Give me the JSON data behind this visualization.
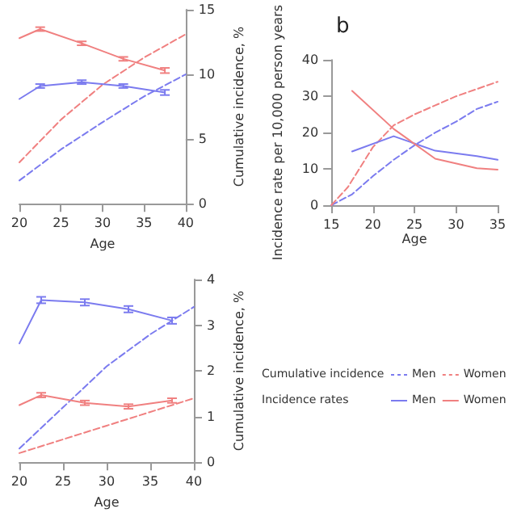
{
  "chart_data": [
    {
      "type": "line",
      "xlabel": "Age",
      "y2label": "Cumulative incidence, %",
      "xlim": [
        20,
        40
      ],
      "xticks": [
        20,
        25,
        30,
        35,
        40
      ],
      "y2lim": [
        0,
        15
      ],
      "y2ticks": [
        0,
        5,
        10,
        15
      ],
      "marker": "none",
      "series": [
        {
          "color": "#7b7bef",
          "line_style": "dashed",
          "axis": "y2",
          "x": [
            20,
            25,
            30,
            35,
            40
          ],
          "values": [
            1.8,
            4.2,
            6.3,
            8.3,
            10
          ]
        },
        {
          "color": "#f08080",
          "line_style": "dashed",
          "axis": "y2",
          "x": [
            20,
            25,
            30,
            35,
            40
          ],
          "values": [
            3.2,
            6.5,
            9.2,
            11.3,
            13.1
          ]
        },
        {
          "color": "#7b7bef",
          "line_style": "solid",
          "axis": "y2",
          "x": [
            20,
            22.5,
            27.5,
            32.5,
            37.5
          ],
          "values": [
            8.1,
            9.1,
            9.4,
            9.1,
            8.6
          ],
          "errors": [
            null,
            0.15,
            0.15,
            0.15,
            0.2
          ]
        },
        {
          "color": "#f08080",
          "line_style": "solid",
          "axis": "y2",
          "x": [
            20,
            22.5,
            27.5,
            32.5,
            37.5
          ],
          "values": [
            12.8,
            13.5,
            12.4,
            11.2,
            10.3
          ],
          "errors": [
            null,
            0.15,
            0.15,
            0.15,
            0.2
          ]
        }
      ]
    },
    {
      "type": "line",
      "xlabel": "Age",
      "ylabel": "Incidence rate per 10,000 person years",
      "xlim": [
        15,
        35
      ],
      "xticks": [
        15,
        20,
        25,
        30,
        35
      ],
      "ylim": [
        0,
        40
      ],
      "yticks": [
        0,
        10,
        20,
        30,
        40
      ],
      "marker": "none",
      "legend": "bottom",
      "annotations": [
        "b",
        "Cumulative incidence",
        "Incidence rates"
      ],
      "series": [
        {
          "name": "Men",
          "color": "#7b7bef",
          "line_style": "dashed",
          "x": [
            15,
            17.5,
            20,
            22.5,
            25,
            27.5,
            30,
            32.5,
            35
          ],
          "values": [
            0,
            3,
            8,
            12.5,
            16.5,
            20,
            23,
            26.5,
            28.5
          ]
        },
        {
          "name": "Women",
          "color": "#f08080",
          "line_style": "dashed",
          "x": [
            15,
            17,
            20,
            22.5,
            25,
            27.5,
            30,
            35
          ],
          "values": [
            0,
            5,
            16,
            22,
            25,
            27.5,
            30,
            34
          ]
        },
        {
          "name": "Men",
          "color": "#7b7bef",
          "line_style": "solid",
          "x": [
            17.5,
            22.5,
            27.5,
            32.5,
            35
          ],
          "values": [
            14.8,
            19,
            15,
            13.5,
            12.5
          ]
        },
        {
          "name": "Women",
          "color": "#f08080",
          "line_style": "solid",
          "x": [
            17.5,
            22.5,
            27.5,
            32.5,
            35
          ],
          "values": [
            31.5,
            21,
            12.8,
            10.2,
            9.8
          ]
        }
      ]
    },
    {
      "type": "line",
      "xlabel": "Age",
      "y2label": "Cumulative incidence, %",
      "xlim": [
        20,
        40
      ],
      "xticks": [
        20,
        25,
        30,
        35,
        40
      ],
      "y2lim": [
        0,
        4
      ],
      "y2ticks": [
        0,
        1,
        2,
        3,
        4
      ],
      "marker": "none",
      "series": [
        {
          "color": "#7b7bef",
          "line_style": "dashed",
          "axis": "y2",
          "x": [
            20,
            25,
            30,
            35,
            40
          ],
          "values": [
            0.3,
            1.2,
            2.1,
            2.8,
            3.4
          ]
        },
        {
          "color": "#f08080",
          "line_style": "dashed",
          "axis": "y2",
          "x": [
            20,
            25,
            30,
            35,
            40
          ],
          "values": [
            0.2,
            0.5,
            0.8,
            1.1,
            1.4
          ]
        },
        {
          "color": "#7b7bef",
          "line_style": "solid",
          "axis": "y2",
          "x": [
            20,
            22.5,
            27.5,
            32.5,
            37.5
          ],
          "values": [
            2.6,
            3.55,
            3.5,
            3.35,
            3.1
          ],
          "errors": [
            null,
            0.07,
            0.07,
            0.07,
            0.07
          ]
        },
        {
          "color": "#f08080",
          "line_style": "solid",
          "axis": "y2",
          "x": [
            20,
            22.5,
            27.5,
            32.5,
            37.5
          ],
          "values": [
            1.25,
            1.47,
            1.3,
            1.22,
            1.35
          ],
          "errors": [
            null,
            0.05,
            0.05,
            0.05,
            0.05
          ]
        }
      ]
    }
  ]
}
